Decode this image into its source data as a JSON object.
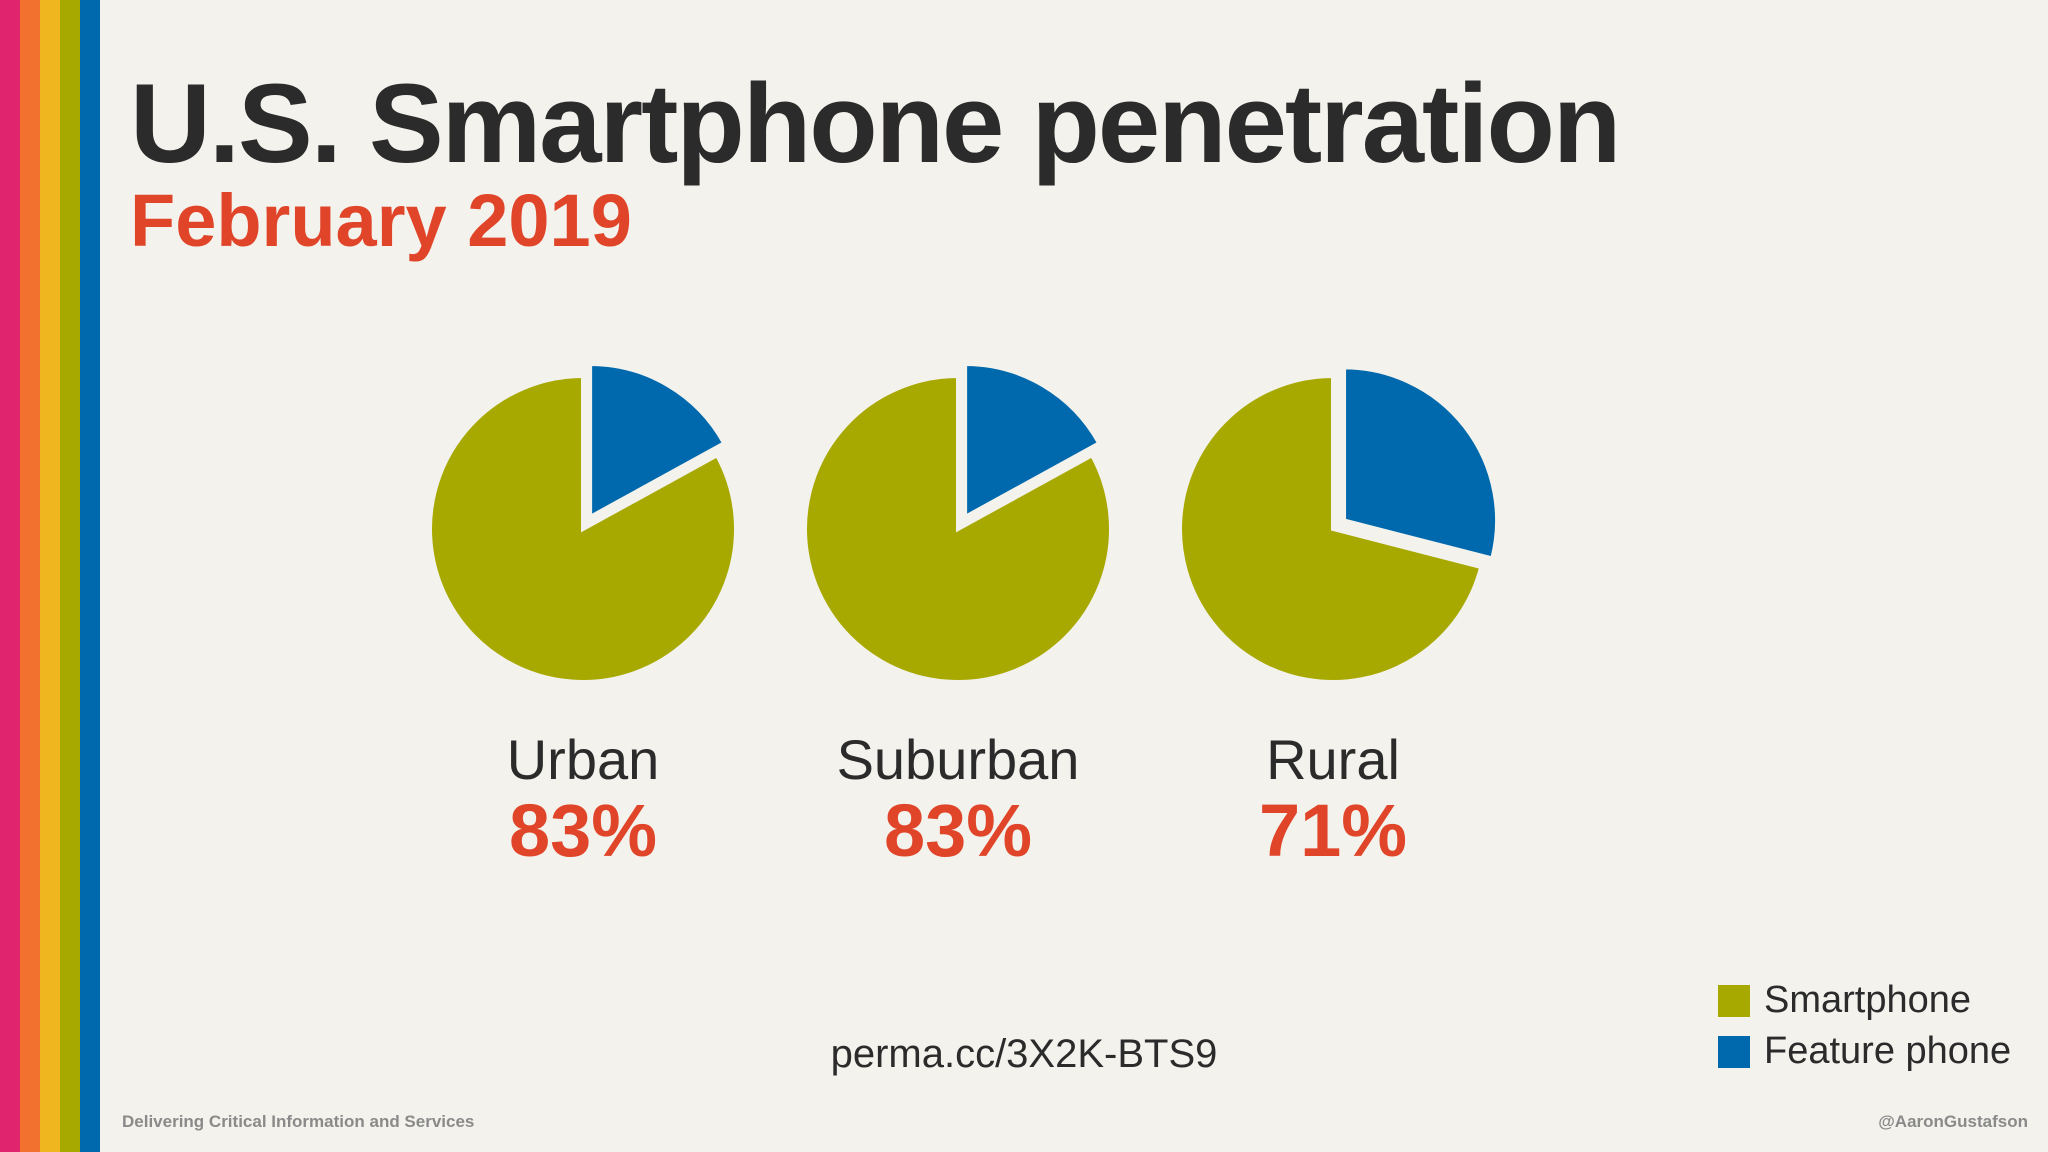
{
  "slide": {
    "title": "U.S. Smartphone penetration",
    "subtitle": "February 2019",
    "source": "perma.cc/3X2K-BTS9",
    "footer_left": "Delivering Critical Information and Services",
    "footer_right": "@AaronGustafson"
  },
  "colors": {
    "smartphone": "#a8a900",
    "feature_phone": "#0068ac",
    "accent": "#e0452a",
    "text": "#2b2b2b",
    "background": "#f3f2ec",
    "stripes": [
      "#e0246e",
      "#f3712f",
      "#f0b61f",
      "#a8a900",
      "#0068ac"
    ]
  },
  "chart_data": {
    "type": "pie",
    "title": "",
    "legend_position": "bottom-right",
    "series_names": [
      "Smartphone",
      "Feature phone"
    ],
    "pies": [
      {
        "label": "Urban",
        "value_label": "83%",
        "values": [
          83,
          17
        ]
      },
      {
        "label": "Suburban",
        "value_label": "83%",
        "values": [
          83,
          17
        ]
      },
      {
        "label": "Rural",
        "value_label": "71%",
        "values": [
          71,
          29
        ]
      }
    ]
  }
}
